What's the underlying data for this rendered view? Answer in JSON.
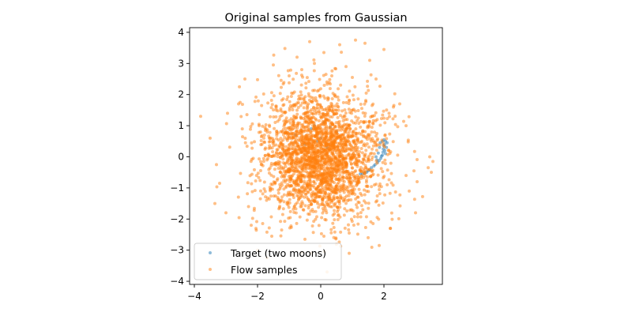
{
  "chart_data": {
    "type": "scatter",
    "title": "Original samples from Gaussian",
    "xlabel": "",
    "ylabel": "",
    "xlim": [
      -4.15,
      3.85
    ],
    "ylim": [
      -4.1,
      4.15
    ],
    "xticks": [
      -4,
      -2,
      0,
      2
    ],
    "yticks": [
      -4,
      -3,
      -2,
      -1,
      0,
      1,
      2,
      3,
      4
    ],
    "grid": false,
    "legend_position": "lower-left",
    "series": [
      {
        "name": "Target (two moons)",
        "color": "#1f77b4",
        "alpha": 0.5,
        "points": [
          [
            2.05,
            0.5
          ],
          [
            2.1,
            0.45
          ],
          [
            2.02,
            0.4
          ],
          [
            2.08,
            0.3
          ],
          [
            2.0,
            0.35
          ],
          [
            2.03,
            0.2
          ],
          [
            1.98,
            0.25
          ],
          [
            2.05,
            0.1
          ],
          [
            1.95,
            0.05
          ],
          [
            1.97,
            0.15
          ],
          [
            1.9,
            -0.05
          ],
          [
            1.92,
            0.02
          ],
          [
            1.85,
            -0.12
          ],
          [
            1.8,
            -0.18
          ],
          [
            1.78,
            -0.1
          ],
          [
            1.72,
            -0.25
          ],
          [
            1.68,
            -0.3
          ],
          [
            1.6,
            -0.35
          ],
          [
            1.55,
            -0.42
          ],
          [
            1.5,
            -0.45
          ],
          [
            1.45,
            -0.5
          ],
          [
            1.38,
            -0.52
          ],
          [
            1.32,
            -0.55
          ],
          [
            1.25,
            -0.55
          ],
          [
            1.88,
            0.45
          ],
          [
            1.95,
            0.5
          ],
          [
            2.0,
            0.55
          ],
          [
            1.86,
            0.3
          ],
          [
            1.82,
            0.12
          ],
          [
            1.75,
            0.0
          ],
          [
            -0.3,
            0.9
          ],
          [
            -0.2,
            1.0
          ],
          [
            0.1,
            1.1
          ],
          [
            0.3,
            0.95
          ],
          [
            -0.8,
            0.7
          ],
          [
            0.5,
            0.8
          ],
          [
            0.0,
            0.6
          ],
          [
            -0.5,
            0.4
          ],
          [
            0.2,
            0.3
          ],
          [
            -0.1,
            0.5
          ]
        ]
      },
      {
        "name": "Flow samples",
        "color": "#ff7f0e",
        "alpha": 0.5,
        "count": 2600,
        "mean": [
          0.0,
          0.0
        ],
        "std": [
          0.95,
          1.0
        ],
        "outliers": [
          [
            -3.8,
            1.3
          ],
          [
            -3.5,
            0.6
          ],
          [
            -3.3,
            -0.25
          ],
          [
            -3.2,
            -0.85
          ],
          [
            -3.35,
            -1.5
          ],
          [
            -3.0,
            -1.8
          ],
          [
            -2.95,
            1.4
          ],
          [
            -2.6,
            1.7
          ],
          [
            -2.4,
            2.5
          ],
          [
            -2.2,
            -2.2
          ],
          [
            -2.05,
            -2.3
          ],
          [
            -2.0,
            -3.0
          ],
          [
            -1.7,
            -3.25
          ],
          [
            -1.55,
            -2.55
          ],
          [
            -1.5,
            2.95
          ],
          [
            -1.0,
            2.6
          ],
          [
            -0.75,
            3.2
          ],
          [
            -0.6,
            2.8
          ],
          [
            -0.35,
            3.7
          ],
          [
            -0.2,
            3.0
          ],
          [
            0.1,
            3.35
          ],
          [
            0.35,
            2.6
          ],
          [
            0.6,
            3.6
          ],
          [
            0.8,
            2.9
          ],
          [
            0.9,
            -3.1
          ],
          [
            1.0,
            2.55
          ],
          [
            1.1,
            3.75
          ],
          [
            1.4,
            3.65
          ],
          [
            1.55,
            3.1
          ],
          [
            1.75,
            2.5
          ],
          [
            2.0,
            3.45
          ],
          [
            2.3,
            1.6
          ],
          [
            2.5,
            1.7
          ],
          [
            2.7,
            1.0
          ],
          [
            2.7,
            -0.6
          ],
          [
            2.8,
            -1.1
          ],
          [
            2.95,
            -0.45
          ],
          [
            3.05,
            -0.8
          ],
          [
            3.0,
            -1.8
          ],
          [
            3.4,
            -0.35
          ],
          [
            3.45,
            0.0
          ],
          [
            3.55,
            -0.15
          ],
          [
            3.5,
            -0.5
          ],
          [
            2.2,
            -2.3
          ],
          [
            1.85,
            -2.85
          ],
          [
            1.5,
            -2.6
          ],
          [
            0.9,
            -2.45
          ],
          [
            0.1,
            -2.55
          ],
          [
            -0.5,
            -2.65
          ],
          [
            0.2,
            -3.7
          ]
        ]
      }
    ]
  }
}
